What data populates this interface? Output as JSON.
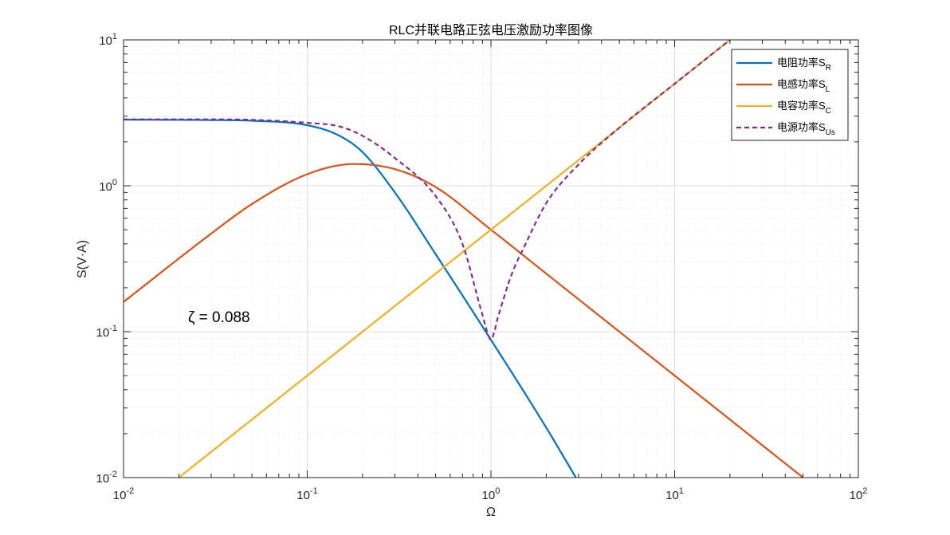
{
  "chart_data": {
    "type": "line",
    "title": "RLC并联电路正弦电压激励功率图像",
    "xlabel": "Ω",
    "ylabel": "S(V·A)",
    "xscale": "log",
    "yscale": "log",
    "xlim": [
      0.01,
      100
    ],
    "ylim": [
      0.01,
      10
    ],
    "x_ticks": [
      {
        "base": "10",
        "exp": "-2"
      },
      {
        "base": "10",
        "exp": "-1"
      },
      {
        "base": "10",
        "exp": "0"
      },
      {
        "base": "10",
        "exp": "1"
      },
      {
        "base": "10",
        "exp": "2"
      }
    ],
    "y_ticks": [
      {
        "base": "10",
        "exp": "-2"
      },
      {
        "base": "10",
        "exp": "-1"
      },
      {
        "base": "10",
        "exp": "0"
      },
      {
        "base": "10",
        "exp": "1"
      }
    ],
    "grid": true,
    "minor_grid": true,
    "legend_position": "top-right",
    "annotation": "ζ = 0.088",
    "series": [
      {
        "name": "电阻功率S",
        "subscript": "R",
        "color": "#0072BD",
        "style": "solid",
        "x": [
          0.01,
          0.03,
          0.05,
          0.1,
          0.15,
          0.2,
          0.3,
          0.5,
          1,
          2,
          2.9
        ],
        "y": [
          2.84,
          2.82,
          2.79,
          2.6,
          2.2,
          1.7,
          0.9,
          0.34,
          0.088,
          0.022,
          0.01
        ]
      },
      {
        "name": "电感功率S",
        "subscript": "L",
        "color": "#D95319",
        "style": "solid",
        "x": [
          0.01,
          0.03,
          0.05,
          0.1,
          0.18,
          0.3,
          0.5,
          1,
          2,
          5,
          10,
          20,
          50
        ],
        "y": [
          0.16,
          0.47,
          0.75,
          1.2,
          1.41,
          1.3,
          0.98,
          0.5,
          0.25,
          0.1,
          0.05,
          0.025,
          0.01
        ]
      },
      {
        "name": "电容功率S",
        "subscript": "C",
        "color": "#EDB120",
        "style": "solid",
        "x": [
          0.02,
          0.1,
          0.5,
          1,
          2,
          5,
          10,
          20
        ],
        "y": [
          0.01,
          0.05,
          0.25,
          0.5,
          1,
          2.5,
          5,
          10
        ]
      },
      {
        "name": "电源功率S",
        "subscript": "Us",
        "color": "#7E2F8E",
        "style": "dashed",
        "x": [
          0.01,
          0.03,
          0.05,
          0.1,
          0.15,
          0.2,
          0.3,
          0.5,
          0.7,
          0.9,
          1,
          1.1,
          1.3,
          1.5,
          2,
          3,
          5,
          10,
          20
        ],
        "y": [
          2.85,
          2.85,
          2.83,
          2.7,
          2.55,
          2.2,
          1.55,
          0.85,
          0.4,
          0.13,
          0.088,
          0.13,
          0.25,
          0.37,
          0.76,
          1.4,
          2.5,
          5,
          10
        ]
      }
    ]
  }
}
